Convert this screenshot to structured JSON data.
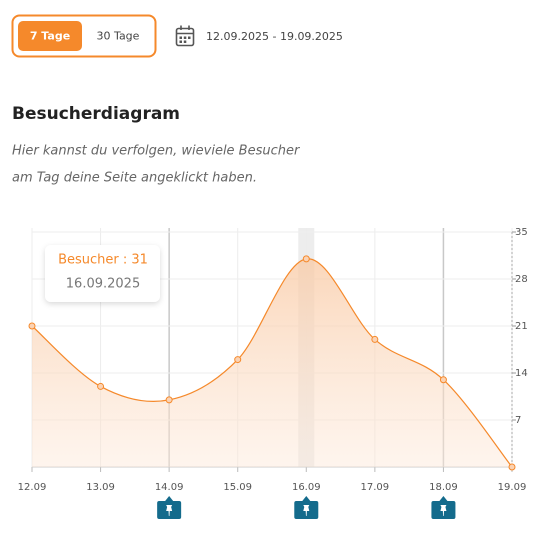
{
  "range_buttons": [
    "7 Tage",
    "30 Tage"
  ],
  "date_range": "12.09.2025 - 19.09.2025",
  "heading": "Besucherdiagram",
  "description": [
    "Hier kannst du verfolgen, wieviele Besucher",
    "am Tag deine Seite angeklickt haben."
  ],
  "tooltip": {
    "label": "Besucher : 31",
    "date": "16.09.2025"
  },
  "chart_data": {
    "type": "area",
    "categories": [
      "12.09",
      "13.09",
      "14.09",
      "15.09",
      "16.09",
      "17.09",
      "18.09",
      "19.09"
    ],
    "series": [
      {
        "name": "Besucher",
        "color": "#f5892b",
        "values": [
          21,
          12,
          10,
          16,
          31,
          19,
          13,
          0
        ]
      }
    ],
    "ylim": [
      0,
      35
    ],
    "yticks": [
      7,
      14,
      21,
      28,
      35
    ],
    "grid": true
  }
}
